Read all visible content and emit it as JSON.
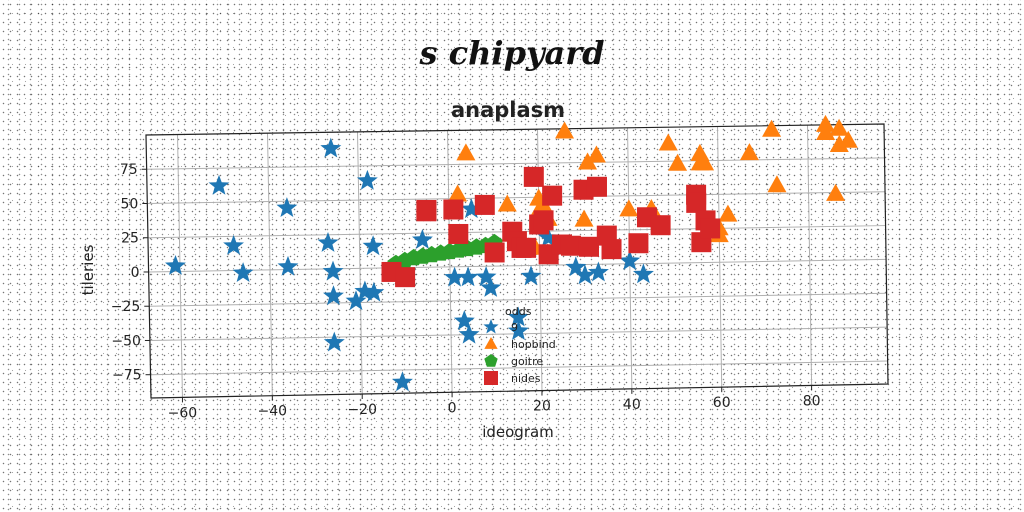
{
  "figure": {
    "suptitle": "s chipyard"
  },
  "chart_data": {
    "type": "scatter",
    "title": "anaplasm",
    "xlabel": "ideogram",
    "ylabel": "tileries",
    "xlim": [
      -67,
      97
    ],
    "ylim": [
      -92,
      100
    ],
    "xticks": [
      -60,
      -40,
      -20,
      0,
      20,
      40,
      60,
      80
    ],
    "yticks": [
      -75,
      -50,
      -25,
      0,
      25,
      50,
      75
    ],
    "grid": true,
    "legend": {
      "title": "odds",
      "placement": "lower-center"
    },
    "series": [
      {
        "name": "9",
        "marker": "star",
        "color": "#1f77b4",
        "points": [
          [
            -61,
            4
          ],
          [
            -51,
            62
          ],
          [
            -26,
            88
          ],
          [
            -36,
            45
          ],
          [
            -48,
            18
          ],
          [
            -46,
            -2
          ],
          [
            -36,
            2
          ],
          [
            -27,
            19
          ],
          [
            -18,
            64
          ],
          [
            -26,
            -2
          ],
          [
            -17,
            16
          ],
          [
            -26,
            -20
          ],
          [
            -21,
            -24
          ],
          [
            -19,
            -17
          ],
          [
            -17,
            -18
          ],
          [
            -26,
            -54
          ],
          [
            -11,
            -84
          ],
          [
            -6,
            20
          ],
          [
            1,
            -8
          ],
          [
            4,
            -8
          ],
          [
            8,
            -8
          ],
          [
            9,
            -16
          ],
          [
            3,
            -40
          ],
          [
            4,
            -50
          ],
          [
            15,
            -38
          ],
          [
            15,
            -48
          ],
          [
            18,
            -8
          ],
          [
            28,
            -2
          ],
          [
            30,
            -8
          ],
          [
            33,
            -6
          ],
          [
            40,
            2
          ],
          [
            43,
            -8
          ],
          [
            22,
            20
          ],
          [
            5,
            42
          ]
        ]
      },
      {
        "name": "hopbind",
        "marker": "triangle",
        "color": "#ff7f0e",
        "points": [
          [
            4,
            83
          ],
          [
            2,
            53
          ],
          [
            13,
            45
          ],
          [
            20,
            49
          ],
          [
            20,
            40
          ],
          [
            21,
            44
          ],
          [
            22,
            34
          ],
          [
            26,
            98
          ],
          [
            30,
            33
          ],
          [
            31,
            75
          ],
          [
            33,
            80
          ],
          [
            19,
            13
          ],
          [
            40,
            40
          ],
          [
            45,
            40
          ],
          [
            49,
            88
          ],
          [
            51,
            73
          ],
          [
            56,
            80
          ],
          [
            56,
            73
          ],
          [
            57,
            73
          ],
          [
            60,
            20
          ],
          [
            60,
            25
          ],
          [
            62,
            35
          ],
          [
            67,
            80
          ],
          [
            72,
            97
          ],
          [
            73,
            56
          ],
          [
            84,
            94
          ],
          [
            84,
            100
          ],
          [
            87,
            97
          ],
          [
            87,
            85
          ],
          [
            89,
            88
          ],
          [
            86,
            49
          ]
        ]
      },
      {
        "name": "goitre",
        "marker": "pentagon",
        "color": "#2ca02c",
        "points": [
          [
            -12,
            3
          ],
          [
            -10,
            5
          ],
          [
            -8,
            7
          ],
          [
            -6,
            8
          ],
          [
            -4,
            9
          ],
          [
            -2,
            10
          ],
          [
            0,
            11
          ],
          [
            2,
            12
          ],
          [
            4,
            13
          ],
          [
            6,
            14
          ],
          [
            8,
            15
          ],
          [
            10,
            17
          ]
        ]
      },
      {
        "name": "nides",
        "marker": "square",
        "color": "#d62728",
        "points": [
          [
            -13,
            -3
          ],
          [
            -10,
            -7
          ],
          [
            -5,
            42
          ],
          [
            -5,
            41
          ],
          [
            1,
            42
          ],
          [
            2,
            24
          ],
          [
            8,
            45
          ],
          [
            10,
            10
          ],
          [
            14,
            25
          ],
          [
            15,
            18
          ],
          [
            16,
            13
          ],
          [
            17,
            13
          ],
          [
            19,
            65
          ],
          [
            20,
            30
          ],
          [
            21,
            33
          ],
          [
            22,
            8
          ],
          [
            23,
            51
          ],
          [
            25,
            15
          ],
          [
            27,
            14
          ],
          [
            30,
            55
          ],
          [
            31,
            13
          ],
          [
            33,
            57
          ],
          [
            35,
            21
          ],
          [
            36,
            11
          ],
          [
            42,
            15
          ],
          [
            44,
            34
          ],
          [
            47,
            28
          ],
          [
            55,
            50
          ],
          [
            55,
            44
          ],
          [
            56,
            15
          ],
          [
            57,
            31
          ],
          [
            58,
            25
          ]
        ]
      }
    ]
  }
}
